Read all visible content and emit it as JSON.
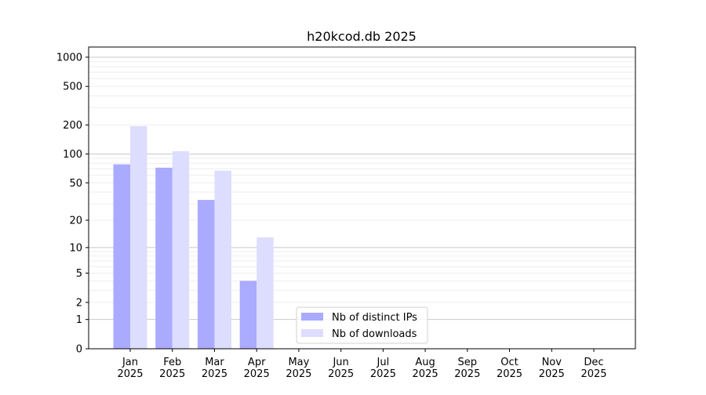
{
  "chart_data": {
    "type": "bar",
    "title": "h20kcod.db 2025",
    "xlabel": "",
    "ylabel": "",
    "yscale": "symlog",
    "ylim": [
      0,
      1300
    ],
    "yticks": [
      0,
      1,
      2,
      5,
      10,
      20,
      50,
      100,
      200,
      500,
      1000
    ],
    "grid": true,
    "legend_placement": "lower-center",
    "categories": [
      "Jan\n2025",
      "Feb\n2025",
      "Mar\n2025",
      "Apr\n2025",
      "May\n2025",
      "Jun\n2025",
      "Jul\n2025",
      "Aug\n2025",
      "Sep\n2025",
      "Oct\n2025",
      "Nov\n2025",
      "Dec\n2025"
    ],
    "series": [
      {
        "name": "Nb of distinct IPs",
        "color": "#aaaaff",
        "values": [
          78,
          72,
          33,
          4,
          0,
          0,
          0,
          0,
          0,
          0,
          0,
          0
        ]
      },
      {
        "name": "Nb of downloads",
        "color": "#ddddff",
        "values": [
          194,
          107,
          67,
          13,
          0,
          0,
          0,
          0,
          0,
          0,
          0,
          0
        ]
      }
    ]
  }
}
